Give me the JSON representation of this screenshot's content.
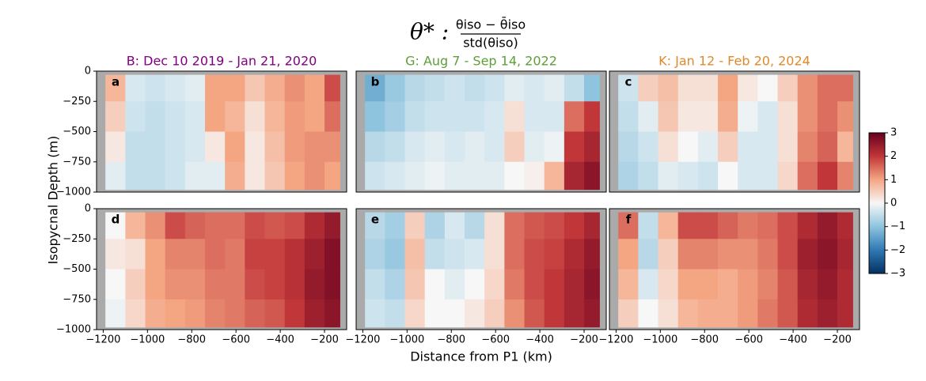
{
  "title": {
    "lhs": "θ* :",
    "numerator": "θiso − θ̄iso",
    "denominator": "std(θiso)"
  },
  "ylabel": "Isopycnal Depth (m)",
  "xlabel": "Distance from P1 (km)",
  "colormap": "RdBu_r",
  "colorbar": {
    "lim": [
      -3,
      3
    ],
    "ticks": [
      {
        "value": -3,
        "label": "−3"
      },
      {
        "value": -2,
        "label": "−2"
      },
      {
        "value": -1,
        "label": "−1"
      },
      0,
      1,
      2,
      3
    ]
  },
  "chart_data": [
    {
      "type": "heatmap",
      "label": "a",
      "title": "B: Dec 10 2019 - Jan 21, 2020",
      "title_color": "#800080",
      "xlim": [
        -1230,
        -100
      ],
      "ylim": [
        -1000,
        0
      ],
      "yticks": [
        0,
        {
          "value": -250,
          "label": "−250"
        },
        {
          "value": -500,
          "label": "−500"
        },
        {
          "value": -750,
          "label": "−750"
        },
        {
          "value": -1000,
          "label": "−1000"
        }
      ],
      "x_edges": [
        -1190,
        -1100,
        -1010,
        -920,
        -830,
        -740,
        -650,
        -560,
        -470,
        -380,
        -290,
        -200,
        -130
      ],
      "y_edges": [
        -30,
        -250,
        -500,
        -750,
        -980
      ],
      "values": [
        [
          0.8,
          -0.3,
          -0.4,
          -0.3,
          -0.2,
          1.0,
          1.0,
          0.6,
          0.9,
          1.2,
          1.0,
          1.8
        ],
        [
          0.5,
          -0.4,
          -0.5,
          -0.4,
          -0.3,
          1.0,
          0.8,
          0.3,
          0.8,
          1.1,
          1.0,
          1.5
        ],
        [
          0.2,
          -0.5,
          -0.5,
          -0.4,
          -0.3,
          0.2,
          1.0,
          0.2,
          0.7,
          1.1,
          1.2,
          1.2
        ],
        [
          -0.2,
          -0.5,
          -0.5,
          -0.4,
          -0.2,
          -0.2,
          0.9,
          0.2,
          0.6,
          1.0,
          1.2,
          1.0
        ]
      ]
    },
    {
      "type": "heatmap",
      "label": "b",
      "title": "G: Aug 7 - Sep 14, 2022",
      "title_color": "#5f9e3a",
      "xlim": [
        -1230,
        -100
      ],
      "ylim": [
        -1000,
        0
      ],
      "x_edges": [
        -1190,
        -1100,
        -1010,
        -920,
        -830,
        -740,
        -650,
        -560,
        -470,
        -380,
        -290,
        -200,
        -130
      ],
      "y_edges": [
        -30,
        -250,
        -500,
        -750,
        -980
      ],
      "values": [
        [
          -1.3,
          -0.9,
          -0.6,
          -0.5,
          -0.4,
          -0.5,
          -0.4,
          -0.2,
          -0.3,
          -0.2,
          -0.5,
          -1.0
        ],
        [
          -1.0,
          -0.8,
          -0.5,
          -0.4,
          -0.4,
          -0.4,
          -0.3,
          0.3,
          -0.3,
          -0.3,
          1.5,
          2.0
        ],
        [
          -0.6,
          -0.5,
          -0.3,
          -0.2,
          -0.3,
          -0.2,
          -0.3,
          0.5,
          -0.2,
          -0.1,
          2.0,
          2.3
        ],
        [
          -0.4,
          -0.3,
          -0.2,
          -0.1,
          -0.2,
          -0.2,
          -0.2,
          0.0,
          0.1,
          0.8,
          2.3,
          2.6
        ]
      ]
    },
    {
      "type": "heatmap",
      "label": "c",
      "title": "K: Jan 12 - Feb 20, 2024",
      "title_color": "#e0892b",
      "xlim": [
        -1230,
        -100
      ],
      "ylim": [
        -1000,
        0
      ],
      "x_edges": [
        -1190,
        -1100,
        -1010,
        -920,
        -830,
        -740,
        -650,
        -560,
        -470,
        -380,
        -290,
        -200,
        -130
      ],
      "y_edges": [
        -30,
        -250,
        -500,
        -750,
        -980
      ],
      "values": [
        [
          -0.4,
          0.5,
          0.7,
          0.3,
          0.3,
          1.0,
          0.2,
          0.0,
          0.5,
          1.2,
          1.5,
          1.5
        ],
        [
          -0.5,
          -0.2,
          0.6,
          0.2,
          0.2,
          0.9,
          -0.1,
          -0.3,
          0.3,
          1.2,
          1.5,
          1.2
        ],
        [
          -0.6,
          -0.4,
          0.3,
          0.0,
          -0.2,
          0.5,
          -0.3,
          -0.3,
          0.3,
          1.3,
          1.6,
          0.8
        ],
        [
          -0.7,
          -0.5,
          -0.2,
          -0.3,
          -0.4,
          0.0,
          -0.3,
          -0.3,
          0.4,
          1.5,
          2.0,
          1.3
        ]
      ]
    },
    {
      "type": "heatmap",
      "label": "d",
      "xlim": [
        -1230,
        -100
      ],
      "ylim": [
        -1000,
        0
      ],
      "yticks": [
        0,
        {
          "value": -250,
          "label": "−250"
        },
        {
          "value": -500,
          "label": "−500"
        },
        {
          "value": -750,
          "label": "−750"
        },
        {
          "value": -1000,
          "label": "−1000"
        }
      ],
      "xticks": [
        {
          "value": -1200,
          "label": "−1200"
        },
        {
          "value": -1000,
          "label": "−1000"
        },
        {
          "value": -800,
          "label": "−800"
        },
        {
          "value": -600,
          "label": "−600"
        },
        {
          "value": -400,
          "label": "−400"
        },
        {
          "value": -200,
          "label": "−200"
        }
      ],
      "x_edges": [
        -1190,
        -1100,
        -1010,
        -920,
        -830,
        -740,
        -650,
        -560,
        -470,
        -380,
        -290,
        -200,
        -130
      ],
      "y_edges": [
        -30,
        -250,
        -500,
        -750,
        -980
      ],
      "values": [
        [
          0.0,
          0.8,
          1.2,
          1.8,
          1.6,
          1.5,
          1.5,
          1.8,
          1.7,
          1.8,
          2.2,
          2.5
        ],
        [
          0.2,
          0.3,
          1.0,
          1.3,
          1.3,
          1.5,
          1.4,
          1.9,
          1.9,
          2.1,
          2.4,
          2.7
        ],
        [
          0.0,
          0.5,
          1.0,
          1.2,
          1.2,
          1.4,
          1.4,
          1.8,
          1.9,
          2.1,
          2.5,
          2.7
        ],
        [
          -0.1,
          0.4,
          0.9,
          1.0,
          1.1,
          1.3,
          1.4,
          1.6,
          1.7,
          2.0,
          2.4,
          2.6
        ]
      ]
    },
    {
      "type": "heatmap",
      "label": "e",
      "xlim": [
        -1230,
        -100
      ],
      "ylim": [
        -1000,
        0
      ],
      "xticks": [
        {
          "value": -1200,
          "label": "−1200"
        },
        {
          "value": -1000,
          "label": "−1000"
        },
        {
          "value": -800,
          "label": "−800"
        },
        {
          "value": -600,
          "label": "−600"
        },
        {
          "value": -400,
          "label": "−400"
        },
        {
          "value": -200,
          "label": "−200"
        }
      ],
      "x_edges": [
        -1190,
        -1100,
        -1010,
        -920,
        -830,
        -740,
        -650,
        -560,
        -470,
        -380,
        -290,
        -200,
        -130
      ],
      "y_edges": [
        -30,
        -250,
        -500,
        -750,
        -980
      ],
      "values": [
        [
          -0.6,
          -0.8,
          0.5,
          -0.7,
          -0.3,
          -0.6,
          0.3,
          1.5,
          1.7,
          1.8,
          2.0,
          2.3
        ],
        [
          -0.7,
          -0.9,
          0.7,
          -0.5,
          -0.4,
          -0.3,
          0.3,
          1.5,
          1.8,
          1.9,
          2.2,
          2.5
        ],
        [
          -0.5,
          -0.7,
          0.6,
          0.0,
          -0.2,
          0.0,
          0.4,
          1.4,
          1.8,
          2.0,
          2.3,
          2.6
        ],
        [
          -0.4,
          -0.5,
          0.4,
          0.0,
          0.0,
          0.2,
          0.5,
          1.2,
          1.7,
          2.0,
          2.3,
          2.5
        ]
      ]
    },
    {
      "type": "heatmap",
      "label": "f",
      "xlim": [
        -1230,
        -100
      ],
      "ylim": [
        -1000,
        0
      ],
      "xticks": [
        {
          "value": -1200,
          "label": "−1200"
        },
        {
          "value": -1000,
          "label": "−1000"
        },
        {
          "value": -800,
          "label": "−800"
        },
        {
          "value": -600,
          "label": "−600"
        },
        {
          "value": -400,
          "label": "−400"
        },
        {
          "value": -200,
          "label": "−200"
        }
      ],
      "x_edges": [
        -1190,
        -1100,
        -1010,
        -920,
        -830,
        -740,
        -650,
        -560,
        -470,
        -380,
        -290,
        -200,
        -130
      ],
      "y_edges": [
        -30,
        -250,
        -500,
        -750,
        -980
      ],
      "values": [
        [
          1.5,
          -0.5,
          0.8,
          1.8,
          1.8,
          1.6,
          1.4,
          1.5,
          1.8,
          2.2,
          2.5,
          2.2
        ],
        [
          1.0,
          -0.6,
          0.5,
          1.3,
          1.3,
          1.2,
          1.2,
          1.4,
          1.8,
          2.4,
          2.6,
          2.3
        ],
        [
          0.8,
          -0.3,
          0.4,
          1.0,
          1.0,
          0.9,
          1.1,
          1.3,
          1.7,
          2.3,
          2.5,
          2.2
        ],
        [
          0.5,
          0.0,
          0.3,
          0.8,
          0.9,
          0.9,
          1.1,
          1.4,
          1.7,
          2.2,
          2.4,
          2.2
        ]
      ]
    }
  ]
}
